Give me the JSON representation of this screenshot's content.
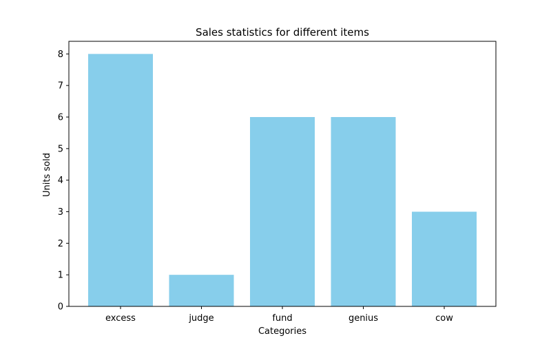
{
  "chart_data": {
    "type": "bar",
    "title": "Sales statistics for different items",
    "xlabel": "Categories",
    "ylabel": "Units sold",
    "categories": [
      "excess",
      "judge",
      "fund",
      "genius",
      "cow"
    ],
    "values": [
      8,
      1,
      6,
      6,
      3
    ],
    "ylim": [
      0,
      8
    ],
    "yticks": [
      "0",
      "1",
      "2",
      "3",
      "4",
      "5",
      "6",
      "7",
      "8"
    ],
    "bar_color": "#87CEEB",
    "grid": false,
    "legend": "none"
  }
}
